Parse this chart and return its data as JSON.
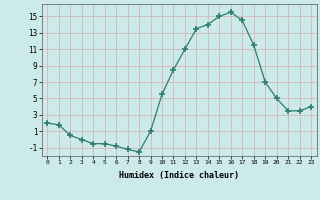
{
  "x": [
    0,
    1,
    2,
    3,
    4,
    5,
    6,
    7,
    8,
    9,
    10,
    11,
    12,
    13,
    14,
    15,
    16,
    17,
    18,
    19,
    20,
    21,
    22,
    23
  ],
  "y": [
    2,
    1.8,
    0.5,
    0,
    -0.5,
    -0.5,
    -0.8,
    -1.2,
    -1.5,
    1,
    5.5,
    8.5,
    11,
    13.5,
    14,
    15,
    15.5,
    14.5,
    11.5,
    7,
    5,
    3.5,
    3.5,
    4
  ],
  "line_color": "#2d7d6e",
  "marker_color": "#2d7d6e",
  "bg_color": "#cdeaea",
  "grid_color": "#d4b8b8",
  "xlabel": "Humidex (Indice chaleur)",
  "xlim": [
    -0.5,
    23.5
  ],
  "ylim": [
    -2,
    16.5
  ],
  "yticks": [
    -1,
    1,
    3,
    5,
    7,
    9,
    11,
    13,
    15
  ],
  "xticks": [
    0,
    1,
    2,
    3,
    4,
    5,
    6,
    7,
    8,
    9,
    10,
    11,
    12,
    13,
    14,
    15,
    16,
    17,
    18,
    19,
    20,
    21,
    22,
    23
  ]
}
